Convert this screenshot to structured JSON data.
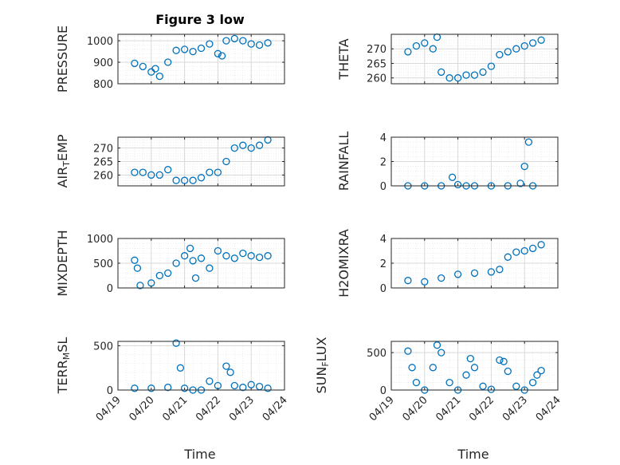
{
  "figure": {
    "title": "Figure 3 low",
    "xlabel": "Time"
  },
  "x_tick_labels": [
    "04/19",
    "04/20",
    "04/21",
    "04/22",
    "04/23",
    "04/24"
  ],
  "colors": {
    "marker": "#0072BD",
    "axis": "#262626",
    "grid": "#d9d9d9",
    "background": "#ffffff"
  },
  "chart_data": [
    {
      "type": "scatter",
      "ylabel": "PRESSURE",
      "ylim": [
        800,
        1030
      ],
      "yticks": [
        800,
        900,
        1000
      ],
      "title": "Figure 3 low",
      "grid": true,
      "marker": "o",
      "x": [
        "04/19 12:00",
        "04/19 18:00",
        "04/20 00:00",
        "04/20 03:00",
        "04/20 06:00",
        "04/20 12:00",
        "04/20 18:00",
        "04/21 00:00",
        "04/21 06:00",
        "04/21 12:00",
        "04/21 18:00",
        "04/22 00:00",
        "04/22 03:00",
        "04/22 06:00",
        "04/22 12:00",
        "04/22 18:00",
        "04/23 00:00",
        "04/23 06:00",
        "04/23 12:00"
      ],
      "y": [
        895,
        880,
        855,
        870,
        835,
        900,
        955,
        960,
        950,
        965,
        985,
        940,
        930,
        1000,
        1010,
        1000,
        985,
        980,
        990
      ]
    },
    {
      "type": "scatter",
      "ylabel": "THETA",
      "ylim": [
        258,
        275
      ],
      "yticks": [
        260,
        265,
        270
      ],
      "grid": true,
      "marker": "o",
      "x": [
        "04/19 12:00",
        "04/19 18:00",
        "04/20 00:00",
        "04/20 06:00",
        "04/20 09:00",
        "04/20 12:00",
        "04/20 18:00",
        "04/21 00:00",
        "04/21 06:00",
        "04/21 12:00",
        "04/21 18:00",
        "04/22 00:00",
        "04/22 06:00",
        "04/22 12:00",
        "04/22 18:00",
        "04/23 00:00",
        "04/23 06:00",
        "04/23 12:00"
      ],
      "y": [
        269,
        271,
        272,
        270,
        274,
        262,
        260,
        260,
        261,
        261,
        262,
        264,
        268,
        269,
        270,
        271,
        272,
        273
      ]
    },
    {
      "type": "scatter",
      "ylabel": "AIR_TEMP",
      "ylim": [
        256,
        274
      ],
      "yticks": [
        260,
        265,
        270
      ],
      "grid": true,
      "marker": "o",
      "x": [
        "04/19 12:00",
        "04/19 18:00",
        "04/20 00:00",
        "04/20 06:00",
        "04/20 12:00",
        "04/20 18:00",
        "04/21 00:00",
        "04/21 06:00",
        "04/21 12:00",
        "04/21 18:00",
        "04/22 00:00",
        "04/22 06:00",
        "04/22 12:00",
        "04/22 18:00",
        "04/23 00:00",
        "04/23 06:00",
        "04/23 12:00"
      ],
      "y": [
        261,
        261,
        260,
        260,
        262,
        258,
        258,
        258,
        259,
        261,
        261,
        265,
        270,
        271,
        270,
        271,
        273
      ]
    },
    {
      "type": "scatter",
      "ylabel": "RAINFALL",
      "ylim": [
        0,
        4
      ],
      "yticks": [
        0,
        2,
        4
      ],
      "grid": true,
      "marker": "o",
      "x": [
        "04/19 12:00",
        "04/20 00:00",
        "04/20 12:00",
        "04/20 20:00",
        "04/21 00:00",
        "04/21 06:00",
        "04/21 12:00",
        "04/22 00:00",
        "04/22 12:00",
        "04/22 21:00",
        "04/23 00:00",
        "04/23 03:00",
        "04/23 06:00"
      ],
      "y": [
        0,
        0,
        0,
        0.7,
        0.1,
        0,
        0,
        0,
        0,
        0.2,
        1.6,
        3.6,
        0
      ]
    },
    {
      "type": "scatter",
      "ylabel": "MIXDEPTH",
      "ylim": [
        0,
        1000
      ],
      "yticks": [
        0,
        500,
        1000
      ],
      "grid": true,
      "marker": "o",
      "x": [
        "04/19 12:00",
        "04/19 14:00",
        "04/19 16:00",
        "04/20 00:00",
        "04/20 06:00",
        "04/20 12:00",
        "04/20 18:00",
        "04/21 00:00",
        "04/21 04:00",
        "04/21 06:00",
        "04/21 08:00",
        "04/21 12:00",
        "04/21 18:00",
        "04/22 00:00",
        "04/22 06:00",
        "04/22 12:00",
        "04/22 18:00",
        "04/23 00:00",
        "04/23 06:00",
        "04/23 12:00"
      ],
      "y": [
        560,
        400,
        50,
        100,
        250,
        300,
        500,
        650,
        800,
        550,
        200,
        600,
        400,
        750,
        650,
        600,
        700,
        650,
        620,
        650
      ]
    },
    {
      "type": "scatter",
      "ylabel": "H2OMIXRA",
      "ylim": [
        0,
        4
      ],
      "yticks": [
        0,
        2,
        4
      ],
      "grid": true,
      "marker": "o",
      "x": [
        "04/19 12:00",
        "04/20 00:00",
        "04/20 12:00",
        "04/21 00:00",
        "04/21 12:00",
        "04/22 00:00",
        "04/22 06:00",
        "04/22 12:00",
        "04/22 18:00",
        "04/23 00:00",
        "04/23 06:00",
        "04/23 12:00"
      ],
      "y": [
        0.6,
        0.5,
        0.8,
        1.1,
        1.2,
        1.3,
        1.5,
        2.5,
        2.9,
        3.0,
        3.2,
        3.5
      ]
    },
    {
      "type": "scatter",
      "ylabel": "TERR_MSL",
      "ylim": [
        0,
        550
      ],
      "yticks": [
        0,
        500
      ],
      "grid": true,
      "marker": "o",
      "x": [
        "04/19 12:00",
        "04/20 00:00",
        "04/20 12:00",
        "04/20 18:00",
        "04/20 21:00",
        "04/21 00:00",
        "04/21 06:00",
        "04/21 12:00",
        "04/21 18:00",
        "04/22 00:00",
        "04/22 06:00",
        "04/22 09:00",
        "04/22 12:00",
        "04/22 18:00",
        "04/23 00:00",
        "04/23 06:00",
        "04/23 12:00"
      ],
      "y": [
        20,
        20,
        30,
        530,
        250,
        20,
        0,
        0,
        100,
        50,
        270,
        200,
        50,
        30,
        60,
        40,
        20
      ]
    },
    {
      "type": "scatter",
      "ylabel": "SUN_FLUX",
      "ylim": [
        0,
        650
      ],
      "yticks": [
        0,
        500
      ],
      "grid": true,
      "marker": "o",
      "x": [
        "04/19 12:00",
        "04/19 15:00",
        "04/19 18:00",
        "04/20 00:00",
        "04/20 06:00",
        "04/20 09:00",
        "04/20 12:00",
        "04/20 18:00",
        "04/21 00:00",
        "04/21 06:00",
        "04/21 09:00",
        "04/21 12:00",
        "04/21 18:00",
        "04/22 00:00",
        "04/22 06:00",
        "04/22 09:00",
        "04/22 12:00",
        "04/22 18:00",
        "04/23 00:00",
        "04/23 06:00",
        "04/23 09:00",
        "04/23 12:00"
      ],
      "y": [
        520,
        300,
        100,
        0,
        300,
        600,
        500,
        100,
        0,
        200,
        420,
        300,
        50,
        10,
        400,
        380,
        250,
        50,
        0,
        100,
        200,
        260
      ]
    }
  ]
}
